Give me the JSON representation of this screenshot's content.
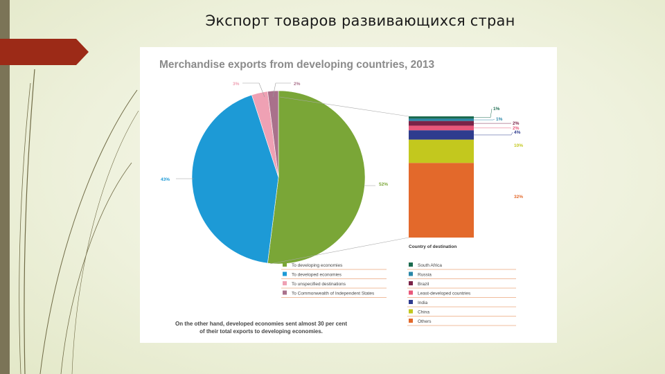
{
  "slide": {
    "title": "Экспорт товаров развивающихся стран"
  },
  "chart_data": {
    "type": "pie",
    "title": "Merchandise exports from developing countries, 2013",
    "pie": {
      "slices": [
        {
          "name": "To developing economies",
          "value": 52,
          "label": "52%",
          "color": "#7aa637"
        },
        {
          "name": "To developed economies",
          "value": 43,
          "label": "43%",
          "color": "#1d9ad6"
        },
        {
          "name": "To unspecified destinations",
          "value": 3,
          "label": "3%",
          "color": "#efa1b4"
        },
        {
          "name": "To Commonwealth of Independent States",
          "value": 2,
          "label": "2%",
          "color": "#a9718b"
        }
      ]
    },
    "breakdown": {
      "xlabel": "Country of destination",
      "segments": [
        {
          "name": "South Africa",
          "value": 1,
          "label": "1%",
          "color": "#1b6b4f"
        },
        {
          "name": "Russia",
          "value": 1,
          "label": "1%",
          "color": "#2a87a8"
        },
        {
          "name": "Brazil",
          "value": 2,
          "label": "2%",
          "color": "#7a2348"
        },
        {
          "name": "Least-developed countries",
          "value": 2,
          "label": "2%",
          "color": "#e8577a"
        },
        {
          "name": "India",
          "value": 4,
          "label": "4%",
          "color": "#2f3c8e"
        },
        {
          "name": "China",
          "value": 10,
          "label": "10%",
          "color": "#c3c81e"
        },
        {
          "name": "Others",
          "value": 32,
          "label": "32%",
          "color": "#e3692b"
        }
      ]
    },
    "annotation": [
      "On the other hand, developed economies sent almost 30 per cent",
      "of their total exports to developing economies."
    ],
    "legend_placement": "bottom"
  }
}
